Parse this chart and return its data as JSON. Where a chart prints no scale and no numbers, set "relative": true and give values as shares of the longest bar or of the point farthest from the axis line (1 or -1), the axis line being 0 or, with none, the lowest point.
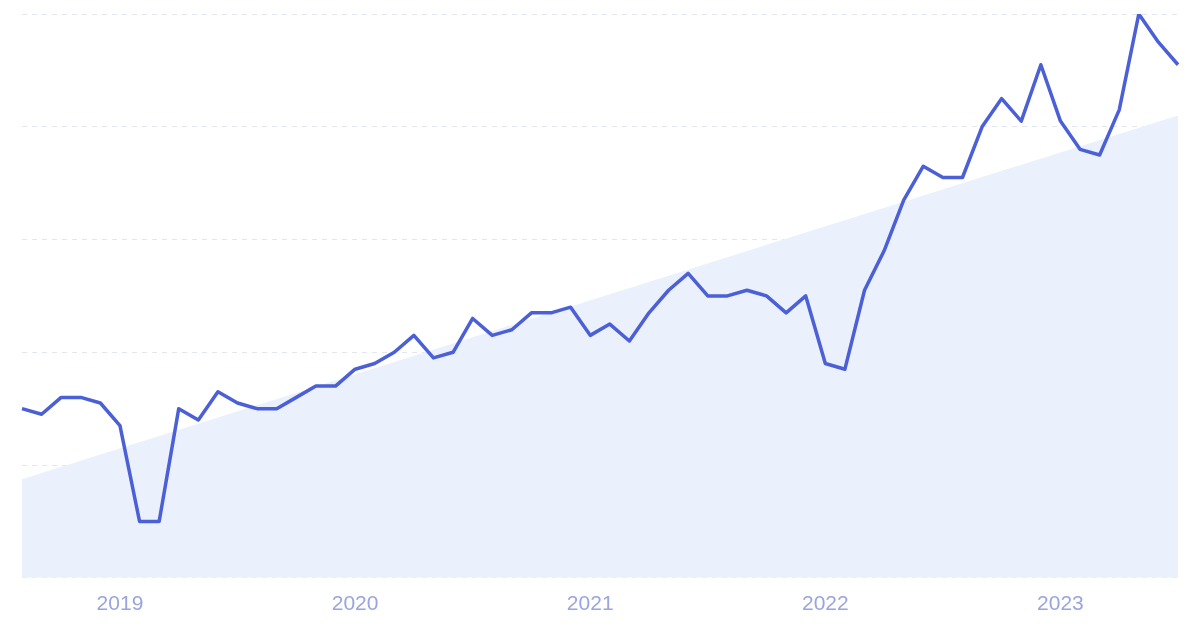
{
  "chart_data": {
    "type": "line",
    "relative": true,
    "grid": "y",
    "marker": "none",
    "line_style": "solid",
    "categories": [
      null,
      null,
      null,
      null,
      null,
      "2019",
      null,
      null,
      null,
      null,
      null,
      null,
      null,
      null,
      null,
      null,
      null,
      "2020",
      null,
      null,
      null,
      null,
      null,
      null,
      null,
      null,
      null,
      null,
      null,
      "2021",
      null,
      null,
      null,
      null,
      null,
      null,
      null,
      null,
      null,
      null,
      null,
      "2022",
      null,
      null,
      null,
      null,
      null,
      null,
      null,
      null,
      null,
      null,
      null,
      "2023",
      null,
      null,
      null,
      null,
      null,
      null
    ],
    "series": [
      {
        "type": "area",
        "color": "#eaf0fc",
        "values": [
          0.175,
          null,
          null,
          null,
          null,
          null,
          null,
          null,
          null,
          null,
          null,
          null,
          null,
          null,
          null,
          null,
          null,
          null,
          null,
          null,
          null,
          null,
          null,
          null,
          null,
          null,
          null,
          null,
          null,
          null,
          null,
          null,
          null,
          null,
          null,
          null,
          null,
          null,
          null,
          null,
          null,
          null,
          null,
          null,
          null,
          null,
          null,
          null,
          null,
          null,
          null,
          null,
          null,
          null,
          null,
          null,
          null,
          null,
          null,
          0.82
        ]
      },
      {
        "color": "#4b5fd6",
        "values": [
          0.3,
          0.29,
          0.32,
          0.32,
          0.31,
          0.27,
          0.1,
          0.1,
          0.3,
          0.28,
          0.33,
          0.31,
          0.3,
          0.3,
          0.32,
          0.34,
          0.34,
          0.37,
          0.38,
          0.4,
          0.43,
          0.39,
          0.4,
          0.46,
          0.43,
          0.44,
          0.47,
          0.47,
          0.48,
          0.43,
          0.45,
          0.42,
          0.47,
          0.51,
          0.54,
          0.5,
          0.5,
          0.51,
          0.5,
          0.47,
          0.5,
          0.38,
          0.37,
          0.51,
          0.58,
          0.67,
          0.73,
          0.71,
          0.71,
          0.8,
          0.85,
          0.81,
          0.91,
          0.81,
          0.76,
          0.75,
          0.83,
          1,
          0.95,
          0.91
        ]
      }
    ]
  }
}
